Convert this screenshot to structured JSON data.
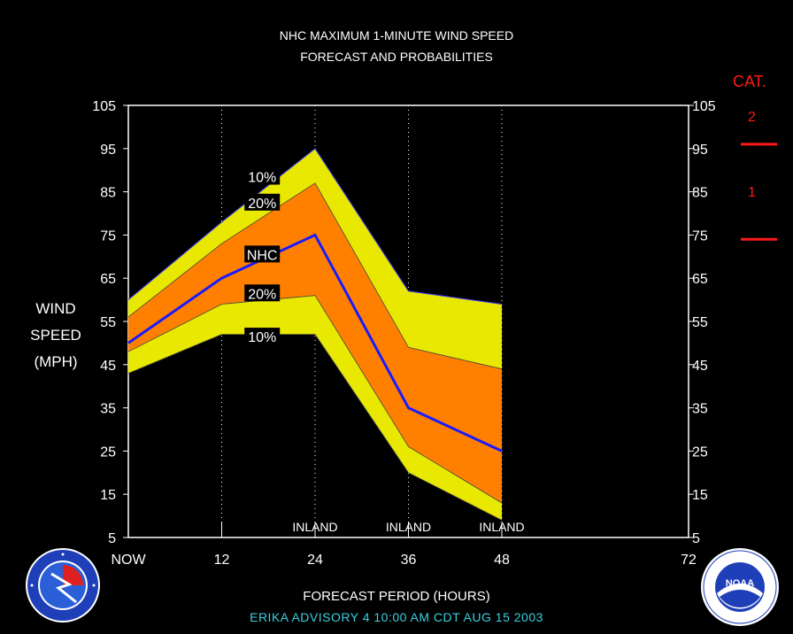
{
  "header": {
    "title_line1": "NHC MAXIMUM 1-MINUTE WIND SPEED",
    "title_line2": "FORECAST AND PROBABILITIES"
  },
  "yaxis": {
    "label_line1": "WIND",
    "label_line2": "SPEED",
    "label_line3": "(MPH)"
  },
  "category": {
    "title": "CAT.",
    "cat2": "2",
    "cat1": "1"
  },
  "footer": {
    "xlabel": "FORECAST PERIOD (HOURS)",
    "advisory": "ERIKA    ADVISORY  4 10:00 AM  CDT  AUG 15  2003"
  },
  "colors": {
    "background": "#000000",
    "outer_band": "#e8e800",
    "inner_band": "#ff8000",
    "nhc_line": "#1a1aff",
    "category_red": "#ff1a1a",
    "advisory_text": "#3ad0e0"
  },
  "chart_data": {
    "type": "area",
    "x": [
      0,
      12,
      24,
      36,
      48
    ],
    "x_tick_labels": [
      "NOW",
      "12",
      "24",
      "36",
      "48",
      "72"
    ],
    "x_tick_values": [
      0,
      12,
      24,
      36,
      48,
      72
    ],
    "xlim": [
      0,
      72
    ],
    "ylim": [
      5,
      105
    ],
    "y_ticks": [
      5,
      15,
      25,
      35,
      45,
      55,
      65,
      75,
      85,
      95,
      105
    ],
    "series": [
      {
        "name": "10%",
        "role": "outer_upper",
        "values": [
          60,
          78,
          95,
          62,
          59
        ]
      },
      {
        "name": "20%",
        "role": "inner_upper",
        "values": [
          56,
          73,
          87,
          49,
          44
        ]
      },
      {
        "name": "NHC",
        "role": "forecast",
        "values": [
          50,
          65,
          75,
          35,
          25
        ]
      },
      {
        "name": "20%",
        "role": "inner_lower",
        "values": [
          48,
          59,
          61,
          26,
          13
        ]
      },
      {
        "name": "10%",
        "role": "outer_lower",
        "values": [
          43,
          52,
          52,
          20,
          9
        ]
      }
    ],
    "band_labels": [
      "10%",
      "20%",
      "NHC",
      "20%",
      "10%"
    ],
    "inland_label": "INLAND",
    "inland_at": [
      24,
      36,
      48
    ],
    "category_thresholds": [
      74,
      96
    ],
    "grid": "vertical dotted at 12, 24, 36, 48"
  }
}
